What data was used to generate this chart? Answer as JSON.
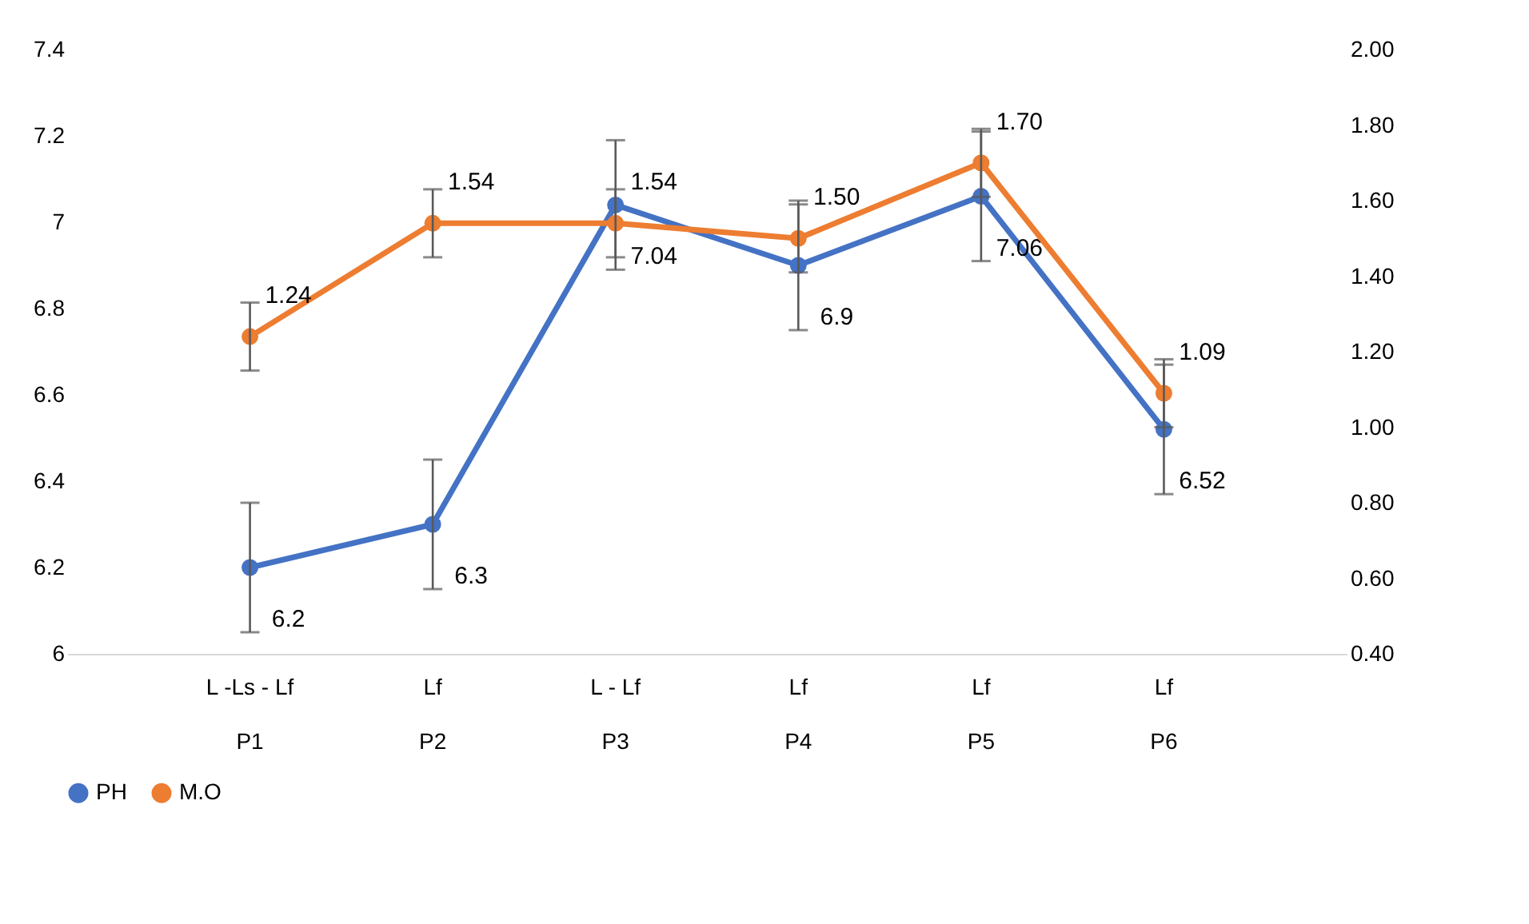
{
  "chart_data": {
    "type": "line",
    "categories": [
      "L -Ls - Lf\nP1",
      "Lf\nP2",
      "L - Lf\nP3",
      "Lf\nP4",
      "Lf\nP5",
      "Lf\nP6"
    ],
    "series": [
      {
        "name": "PH",
        "color": "#4472c4",
        "values": [
          6.2,
          6.3,
          7.04,
          6.9,
          7.06,
          6.52
        ],
        "errors": [
          0.15,
          0.15,
          0.15,
          0.15,
          0.15,
          0.15
        ],
        "value_labels": [
          "6.2",
          "6.3",
          "7.04",
          "6.9",
          "7.06",
          "6.52"
        ]
      },
      {
        "name": "M.O",
        "color": "#ed7d31",
        "axis": "y2",
        "values": [
          1.24,
          1.54,
          1.54,
          1.5,
          1.7,
          1.09
        ],
        "errors": [
          0.09,
          0.09,
          0.09,
          0.09,
          0.09,
          0.09
        ],
        "value_labels": [
          "1.24",
          "1.54",
          "1.54",
          "1.50",
          "1.70",
          "1.09"
        ]
      }
    ],
    "ylim": [
      6,
      7.4
    ],
    "yticks": [
      6,
      6.2,
      6.4,
      6.6,
      6.8,
      7,
      7.2,
      7.4
    ],
    "y2lim": [
      0.4,
      2.0
    ],
    "y2ticks": [
      {
        "value": 0.4,
        "label": "0.40"
      },
      {
        "value": 0.6,
        "label": "0.60"
      },
      {
        "value": 0.8,
        "label": "0.80"
      },
      {
        "value": 1.0,
        "label": "1.00"
      },
      {
        "value": 1.2,
        "label": "1.20"
      },
      {
        "value": 1.4,
        "label": "1.40"
      },
      {
        "value": 1.6,
        "label": "1.60"
      },
      {
        "value": 1.8,
        "label": "1.80"
      },
      {
        "value": 2.0,
        "label": "2.00"
      }
    ],
    "marker": "circle",
    "line_style": "solid",
    "grid": false,
    "legend": "bottom"
  }
}
